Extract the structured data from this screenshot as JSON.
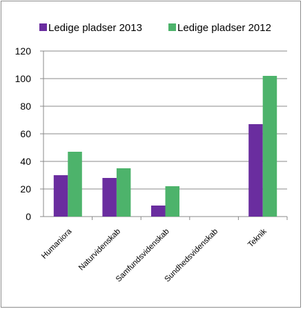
{
  "colors": {
    "series_2013": "#6a2d9f",
    "series_2012": "#4db36b",
    "axis": "#888888",
    "grid": "#888888"
  },
  "chart_data": {
    "type": "bar",
    "title": "",
    "xlabel": "",
    "ylabel": "",
    "categories": [
      "Humaniora",
      "Naturvidenskab",
      "Samfundsvidenskab",
      "Sundhedsvidenskab",
      "Teknik"
    ],
    "series": [
      {
        "name": "Ledige pladser 2013",
        "values": [
          30,
          28,
          8,
          0,
          67
        ]
      },
      {
        "name": "Ledige pladser 2012",
        "values": [
          47,
          35,
          22,
          0,
          102
        ]
      }
    ],
    "ylim": [
      0,
      120
    ],
    "yticks": [
      0,
      20,
      40,
      60,
      80,
      100,
      120
    ],
    "grid": true,
    "legend_position": "top"
  }
}
